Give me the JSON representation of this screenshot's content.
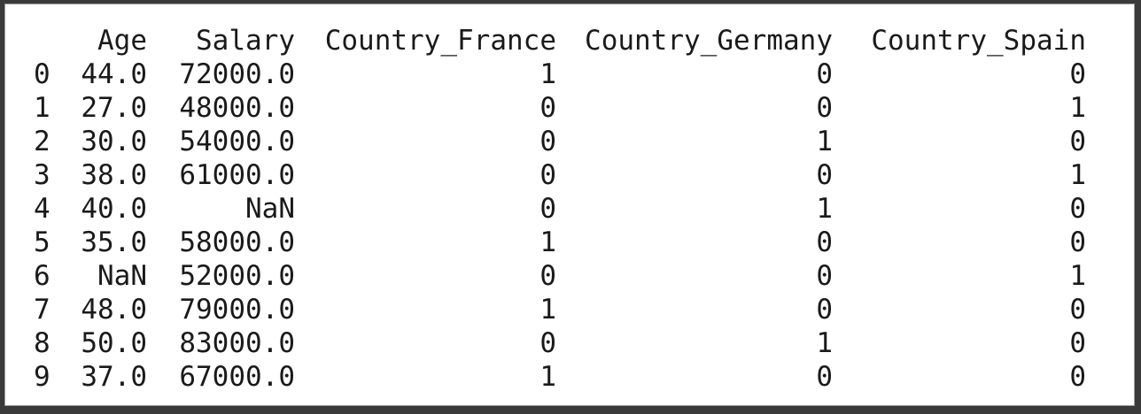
{
  "dataframe": {
    "columns": [
      "",
      "Age",
      "Salary",
      "Country_France",
      "Country_Germany",
      "Country_Spain"
    ],
    "rows": [
      [
        "0",
        "44.0",
        "72000.0",
        "1",
        "0",
        "0"
      ],
      [
        "1",
        "27.0",
        "48000.0",
        "0",
        "0",
        "1"
      ],
      [
        "2",
        "30.0",
        "54000.0",
        "0",
        "1",
        "0"
      ],
      [
        "3",
        "38.0",
        "61000.0",
        "0",
        "0",
        "1"
      ],
      [
        "4",
        "40.0",
        "NaN",
        "0",
        "1",
        "0"
      ],
      [
        "5",
        "35.0",
        "58000.0",
        "1",
        "0",
        "0"
      ],
      [
        "6",
        "NaN",
        "52000.0",
        "0",
        "0",
        "1"
      ],
      [
        "7",
        "48.0",
        "79000.0",
        "1",
        "0",
        "0"
      ],
      [
        "8",
        "50.0",
        "83000.0",
        "0",
        "1",
        "0"
      ],
      [
        "9",
        "37.0",
        "67000.0",
        "1",
        "0",
        "0"
      ]
    ]
  }
}
